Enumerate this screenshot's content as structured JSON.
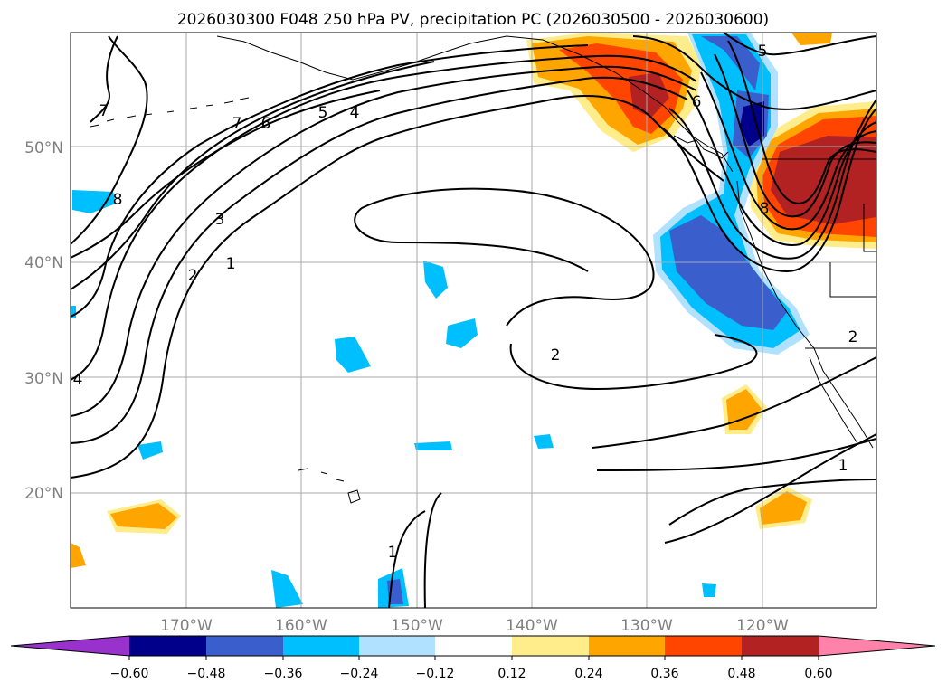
{
  "title": "2026030300 F048 250 hPa PV, precipitation PC (2026030500 - 2026030600)",
  "map": {
    "lat_ticks": [
      "50°N",
      "40°N",
      "30°N",
      "20°N"
    ],
    "lon_ticks": [
      "170°W",
      "160°W",
      "150°W",
      "140°W",
      "130°W",
      "120°W"
    ],
    "grid_color": "#aaaaaa",
    "land_outline_color": "#000000",
    "pv_contour_color": "#000000"
  },
  "pv_contour_labels": [
    "7",
    "7",
    "6",
    "5",
    "4",
    "3",
    "2",
    "1",
    "8",
    "6",
    "5",
    "8",
    "2",
    "2",
    "1",
    "1",
    "4"
  ],
  "colorbar": {
    "colors": [
      "#9932CC",
      "#00008B",
      "#3A5FCD",
      "#00BFFF",
      "#B0E2FF",
      "#FFFFFF",
      "#FFEC8B",
      "#FFA500",
      "#FF4500",
      "#B22222",
      "#FF82AB"
    ],
    "tick_labels": [
      "−0.60",
      "−0.48",
      "−0.36",
      "−0.24",
      "−0.12",
      "0.12",
      "0.24",
      "0.36",
      "0.48",
      "0.60"
    ]
  }
}
